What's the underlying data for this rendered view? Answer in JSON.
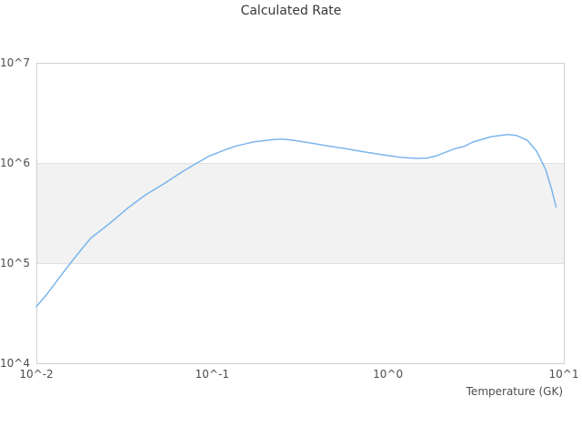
{
  "title": "Calculated Rate",
  "colors": {
    "series_line": "#7cb5ec",
    "plot_border": "#d0d0d0",
    "gridline": "#e1e1e1",
    "band_fill": "#f2f2f2",
    "title_text": "#383838",
    "tick_text": "#4d4d4d",
    "background": "#ffffff"
  },
  "chart_data": {
    "type": "line",
    "title": "Calculated Rate",
    "xlabel": "Temperature (GK)",
    "ylabel": "",
    "x_scale": "log",
    "y_scale": "log",
    "xlim": [
      0.01,
      10
    ],
    "ylim": [
      10000,
      10000000
    ],
    "grid": "horizontal-only",
    "legend": "none",
    "x_ticks": [
      {
        "value": 0.01,
        "label": "10^-2"
      },
      {
        "value": 0.1,
        "label": "10^-1"
      },
      {
        "value": 1,
        "label": "10^0"
      },
      {
        "value": 10,
        "label": "10^1"
      }
    ],
    "y_ticks": [
      {
        "value": 10000,
        "label": "10^4"
      },
      {
        "value": 100000,
        "label": "10^5"
      },
      {
        "value": 1000000,
        "label": "10^6"
      },
      {
        "value": 10000000,
        "label": "10^7"
      }
    ],
    "alternate_band": {
      "from": 100000,
      "to": 1000000,
      "color": "#f2f2f2"
    },
    "series": [
      {
        "name": "Calculated Rate",
        "color": "#7cb5ec",
        "points": [
          [
            0.01,
            36800
          ],
          [
            0.0113,
            47300
          ],
          [
            0.0127,
            62100
          ],
          [
            0.0143,
            81600
          ],
          [
            0.0157,
            101000
          ],
          [
            0.0181,
            138000
          ],
          [
            0.0204,
            178000
          ],
          [
            0.0259,
            246000
          ],
          [
            0.0329,
            352000
          ],
          [
            0.0418,
            481000
          ],
          [
            0.053,
            618000
          ],
          [
            0.0672,
            811000
          ],
          [
            0.0804,
            979000
          ],
          [
            0.0961,
            1170000
          ],
          [
            0.115,
            1330000
          ],
          [
            0.137,
            1480000
          ],
          [
            0.174,
            1630000
          ],
          [
            0.221,
            1710000
          ],
          [
            0.249,
            1730000
          ],
          [
            0.281,
            1700000
          ],
          [
            0.356,
            1590000
          ],
          [
            0.452,
            1480000
          ],
          [
            0.574,
            1390000
          ],
          [
            0.728,
            1290000
          ],
          [
            0.924,
            1210000
          ],
          [
            1.17,
            1140000
          ],
          [
            1.45,
            1110000
          ],
          [
            1.67,
            1120000
          ],
          [
            1.89,
            1180000
          ],
          [
            2.4,
            1390000
          ],
          [
            2.7,
            1460000
          ],
          [
            3.04,
            1620000
          ],
          [
            3.86,
            1830000
          ],
          [
            4.78,
            1920000
          ],
          [
            5.38,
            1880000
          ],
          [
            6.21,
            1680000
          ],
          [
            7.0,
            1310000
          ],
          [
            7.88,
            863000
          ],
          [
            8.57,
            529000
          ],
          [
            9.04,
            363000
          ]
        ]
      }
    ]
  }
}
